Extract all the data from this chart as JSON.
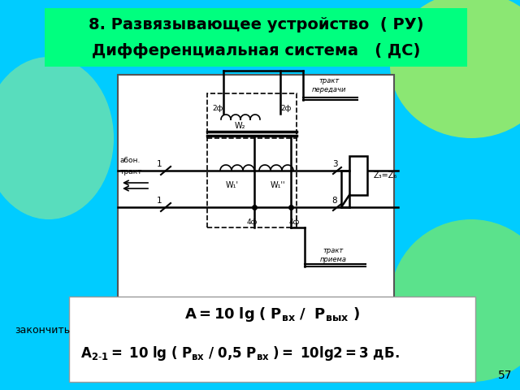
{
  "title_line1": "8. Развязывающее устройство  ( РУ)",
  "title_line2": "Дифференциальная система   ( ДС)",
  "title_bg": "#00ff7f",
  "bg_color": "#00ccff",
  "footer_text": "закончить",
  "formula_box_color": "#ffffff",
  "slide_number": "57",
  "diagram_box_color": "#ffffff",
  "title_fontsize": 14,
  "footer_fontsize": 9,
  "formula_fontsize": 13
}
